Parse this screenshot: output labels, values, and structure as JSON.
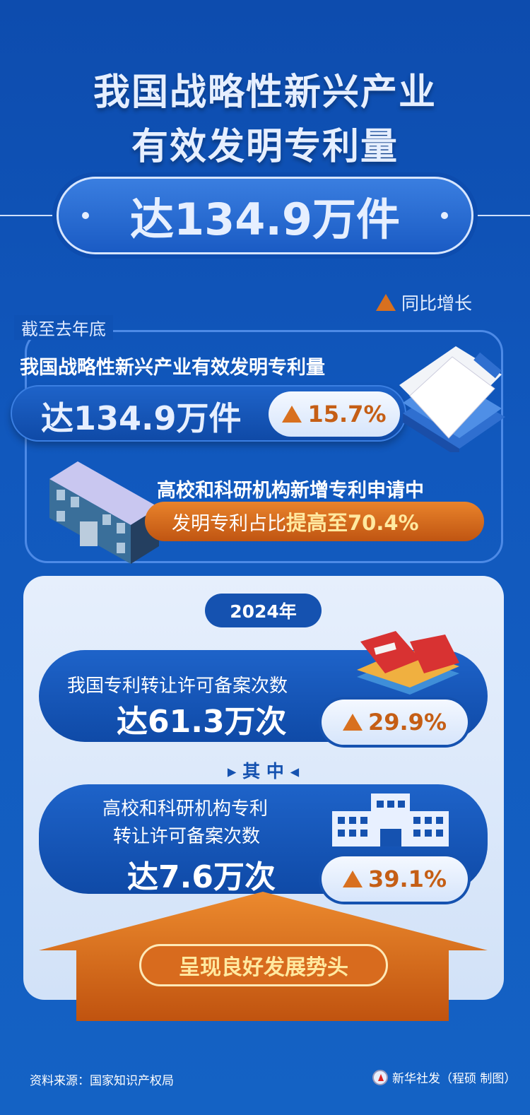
{
  "header": {
    "title_line1": "我国战略性新兴产业",
    "title_line2": "有效发明专利量",
    "headline": "达134.9万件"
  },
  "legend": {
    "label": "同比增长",
    "icon": "triangle-up-icon",
    "color": "#d8701f"
  },
  "section1": {
    "period": "截至去年底",
    "subtitle": "我国战略性新兴产业有效发明专利量",
    "value": "达134.9万件",
    "growth": "15.7%",
    "note_line1": "高校和科研机构新增专利申请中",
    "note_prefix": "发明专利占比",
    "note_highlight": "提高至70.4%"
  },
  "section2": {
    "year": "2024年",
    "item1": {
      "label": "我国专利转让许可备案次数",
      "value": "达61.3万次",
      "growth": "29.9%"
    },
    "among": "其 中",
    "item2": {
      "label_line1": "高校和科研机构专利",
      "label_line2": "转让许可备案次数",
      "value": "达7.6万次",
      "growth": "39.1%"
    },
    "conclusion": "呈现良好发展势头"
  },
  "footer": {
    "source": "资料来源：国家知识产权局",
    "credit": "新华社发（程硕 制图）"
  },
  "colors": {
    "accent_orange": "#d8701f",
    "dark_blue": "#0d4cae",
    "highlight_yellow": "#ffe9a0"
  }
}
